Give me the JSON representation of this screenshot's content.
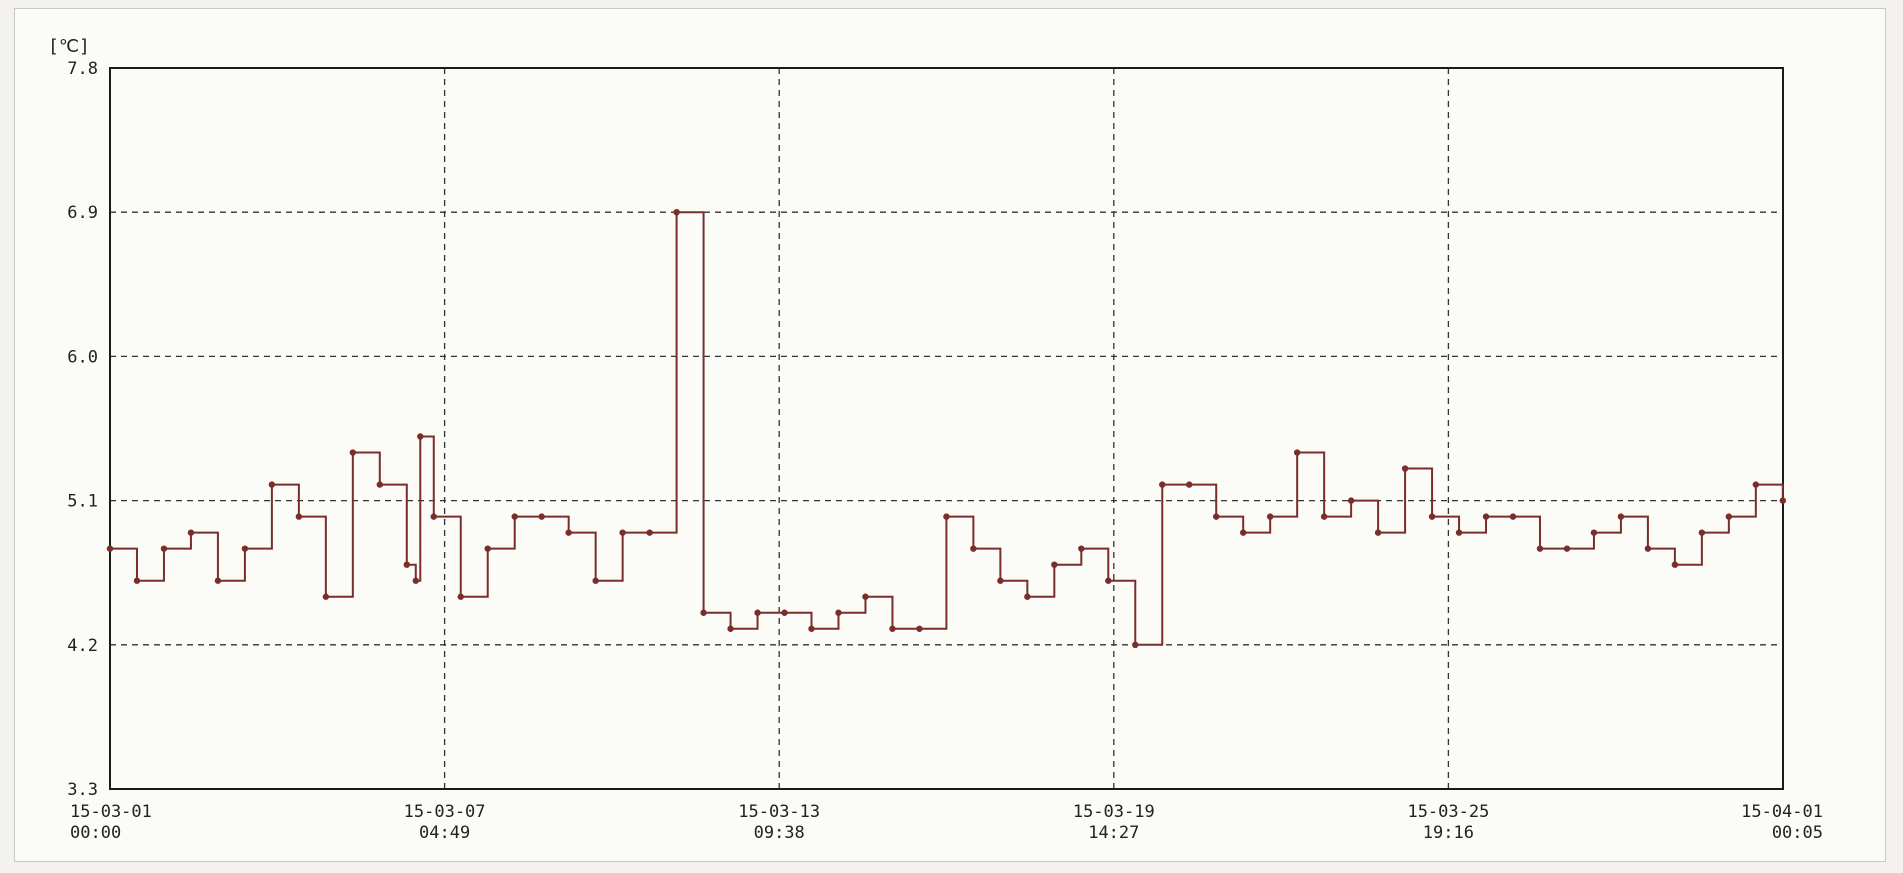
{
  "chart_data": {
    "type": "line",
    "ylabel": "[℃]",
    "ylim": [
      3.3,
      7.8
    ],
    "yticks": [
      3.3,
      4.2,
      5.1,
      6.0,
      6.9,
      7.8
    ],
    "ytick_labels": [
      "3.3",
      "4.2",
      "5.1",
      "6.0",
      "6.9",
      "7.8"
    ],
    "xlim": [
      "2015-03-01T00:00",
      "2015-04-01T00:05"
    ],
    "xticks": [
      {
        "date": "15-03-01",
        "time": "00:00"
      },
      {
        "date": "15-03-07",
        "time": "04:49"
      },
      {
        "date": "15-03-13",
        "time": "09:38"
      },
      {
        "date": "15-03-19",
        "time": "14:27"
      },
      {
        "date": "15-03-25",
        "time": "19:16"
      },
      {
        "date": "15-04-01",
        "time": "00:05"
      }
    ],
    "grid": true,
    "line_color": "#7a2e2a",
    "series": [
      {
        "x": [
          "2015-03-01T00:00",
          "2015-03-01T12:00",
          "2015-03-02T00:00",
          "2015-03-02T12:00",
          "2015-03-03T00:00",
          "2015-03-03T12:00",
          "2015-03-04T00:00",
          "2015-03-04T12:00",
          "2015-03-05T00:00",
          "2015-03-05T12:00",
          "2015-03-06T00:00",
          "2015-03-06T12:00",
          "2015-03-06T16:00",
          "2015-03-06T18:00",
          "2015-03-07T00:00",
          "2015-03-07T12:00",
          "2015-03-08T00:00",
          "2015-03-08T12:00",
          "2015-03-09T00:00",
          "2015-03-09T12:00",
          "2015-03-10T00:00",
          "2015-03-10T12:00",
          "2015-03-11T00:00",
          "2015-03-11T12:00",
          "2015-03-12T00:00",
          "2015-03-12T12:00",
          "2015-03-13T00:00",
          "2015-03-13T12:00",
          "2015-03-14T00:00",
          "2015-03-14T12:00",
          "2015-03-15T00:00",
          "2015-03-15T12:00",
          "2015-03-16T00:00",
          "2015-03-16T12:00",
          "2015-03-17T00:00",
          "2015-03-17T12:00",
          "2015-03-18T00:00",
          "2015-03-18T12:00",
          "2015-03-19T00:00",
          "2015-03-19T12:00",
          "2015-03-20T00:00",
          "2015-03-20T12:00",
          "2015-03-21T00:00",
          "2015-03-21T12:00",
          "2015-03-22T00:00",
          "2015-03-22T12:00",
          "2015-03-23T00:00",
          "2015-03-23T12:00",
          "2015-03-24T00:00",
          "2015-03-24T12:00",
          "2015-03-25T00:00",
          "2015-03-25T12:00",
          "2015-03-26T00:00",
          "2015-03-26T12:00",
          "2015-03-27T00:00",
          "2015-03-27T12:00",
          "2015-03-28T00:00",
          "2015-03-28T12:00",
          "2015-03-29T00:00",
          "2015-03-29T12:00",
          "2015-03-30T00:00",
          "2015-03-30T12:00",
          "2015-03-31T00:00",
          "2015-03-31T12:00",
          "2015-04-01T00:00"
        ],
        "values": [
          4.8,
          4.6,
          4.8,
          4.9,
          4.6,
          4.8,
          5.2,
          5.0,
          4.5,
          5.4,
          5.2,
          4.7,
          4.6,
          5.5,
          5.0,
          4.5,
          4.8,
          5.0,
          5.0,
          4.9,
          4.6,
          4.9,
          4.9,
          6.9,
          4.4,
          4.3,
          4.4,
          4.4,
          4.3,
          4.4,
          4.5,
          4.3,
          4.3,
          5.0,
          4.8,
          4.6,
          4.5,
          4.7,
          4.8,
          4.6,
          4.2,
          5.2,
          5.2,
          5.0,
          4.9,
          5.0,
          5.4,
          5.0,
          5.1,
          4.9,
          5.3,
          5.0,
          4.9,
          5.0,
          5.0,
          4.8,
          4.8,
          4.9,
          5.0,
          4.8,
          4.7,
          4.9,
          5.0,
          5.2,
          5.1
        ]
      }
    ]
  }
}
